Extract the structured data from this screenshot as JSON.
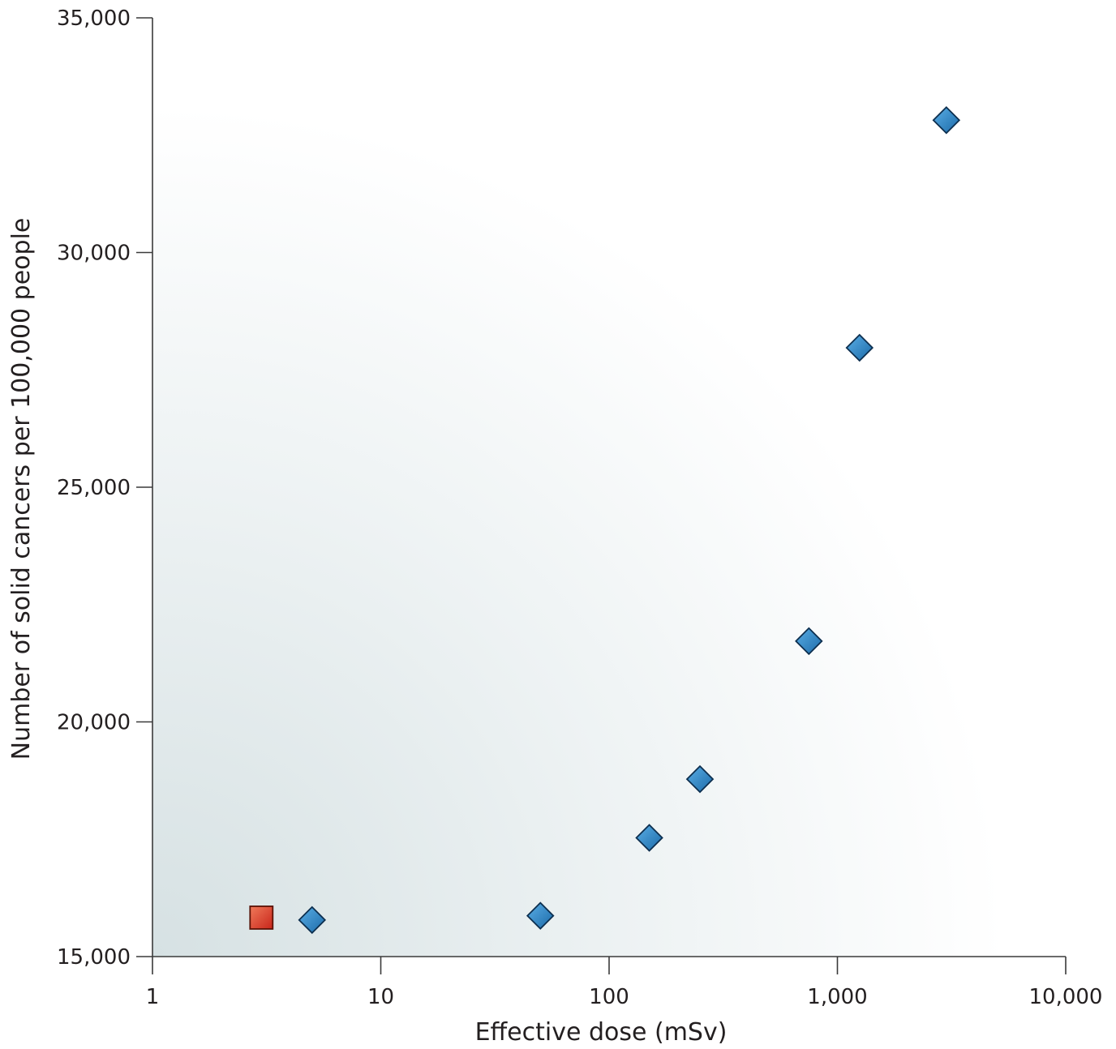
{
  "chart_data": {
    "type": "scatter",
    "title": "",
    "xlabel": "Effective dose (mSv)",
    "ylabel": "Number of solid cancers per 100,000 people",
    "x_scale": "log",
    "xlim": [
      1,
      10000
    ],
    "ylim": [
      15000,
      35000
    ],
    "x_ticks": [
      1,
      10,
      100,
      1000,
      10000
    ],
    "x_tick_labels": [
      "1",
      "10",
      "100",
      "1,000",
      "10,000"
    ],
    "y_ticks": [
      15000,
      20000,
      25000,
      30000,
      35000
    ],
    "y_tick_labels": [
      "15,000",
      "20,000",
      "25,000",
      "30,000",
      "35,000"
    ],
    "grid": false,
    "legend": "none",
    "series": [
      {
        "marker": "diamond",
        "color": "#2a7fc0",
        "x": [
          5,
          50,
          150,
          250,
          750,
          1250,
          3000
        ],
        "y": [
          15780,
          15870,
          17530,
          18780,
          21720,
          27970,
          32820
        ]
      },
      {
        "marker": "square",
        "color": "#e03a22",
        "x": [
          3
        ],
        "y": [
          15830
        ]
      }
    ]
  }
}
